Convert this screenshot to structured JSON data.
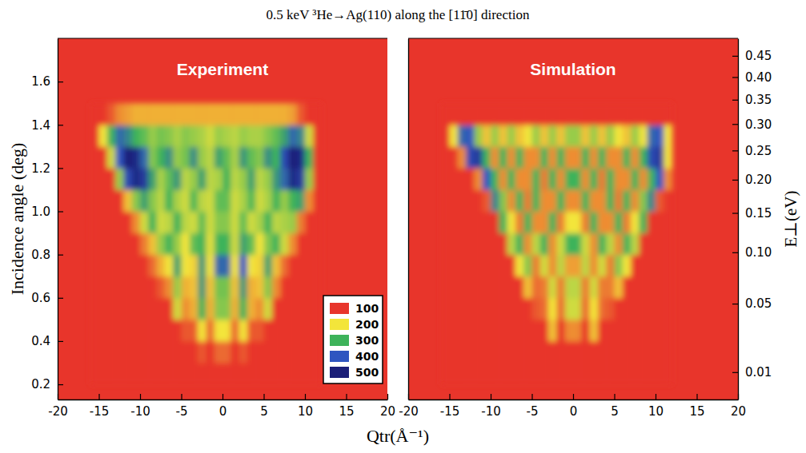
{
  "title": "0.5 keV ³He→Ag(110) along the [11̄0] direction",
  "xlabel": "Qtr(Å⁻¹)",
  "chart_data": [
    {
      "type": "heatmap",
      "title": "Experiment",
      "ylabel": "Incidence angle (deg)",
      "xlim": [
        -20,
        20
      ],
      "xticks": [
        -20,
        -15,
        -10,
        -5,
        0,
        5,
        10,
        15,
        20
      ],
      "ylim": [
        0.13,
        1.8
      ],
      "yticks": [
        0.2,
        0.4,
        0.6,
        0.8,
        {
          "value": 1,
          "label": "1.0"
        },
        1.2,
        1.4,
        1.6
      ],
      "legend": "lower right",
      "colorbar": {
        "range": [
          100,
          500
        ],
        "ticks": [
          100,
          200,
          300,
          400,
          500
        ]
      },
      "xbins": [
        -16,
        -15,
        -14,
        -13,
        -12,
        -11,
        -10,
        -9,
        -8,
        -7,
        -6,
        -5,
        -4,
        -3,
        -2,
        -1,
        0,
        1,
        2,
        3,
        4,
        5,
        6,
        7,
        8,
        9,
        10,
        11,
        12
      ],
      "ybins": [
        0.2,
        0.3,
        0.4,
        0.5,
        0.6,
        0.7,
        0.8,
        0.9,
        1.0,
        1.1,
        1.2,
        1.3,
        1.4,
        1.5
      ],
      "values": [
        [
          0,
          0,
          0,
          0,
          0,
          0,
          0,
          0,
          0,
          0,
          0,
          0,
          0,
          0,
          0,
          0,
          0,
          0,
          0,
          0,
          0,
          0,
          0,
          0,
          0,
          0,
          0,
          0
        ],
        [
          0,
          0,
          0,
          0,
          0,
          0,
          0,
          0,
          0,
          0,
          0,
          0,
          0,
          120,
          50,
          130,
          130,
          50,
          120,
          0,
          0,
          0,
          0,
          0,
          0,
          0,
          0,
          0
        ],
        [
          0,
          0,
          0,
          0,
          0,
          0,
          0,
          0,
          0,
          40,
          100,
          120,
          120,
          200,
          130,
          200,
          200,
          130,
          200,
          120,
          120,
          100,
          40,
          0,
          0,
          0,
          0,
          0
        ],
        [
          0,
          0,
          0,
          0,
          0,
          0,
          0,
          0,
          30,
          60,
          220,
          150,
          170,
          300,
          170,
          260,
          260,
          170,
          300,
          170,
          150,
          220,
          60,
          30,
          0,
          0,
          0,
          0
        ],
        [
          0,
          0,
          0,
          0,
          0,
          0,
          0,
          50,
          120,
          150,
          250,
          170,
          180,
          330,
          180,
          270,
          270,
          180,
          330,
          170,
          180,
          260,
          150,
          50,
          0,
          0,
          0,
          0
        ],
        [
          0,
          0,
          0,
          0,
          0,
          0,
          60,
          130,
          170,
          200,
          320,
          200,
          190,
          330,
          200,
          380,
          380,
          200,
          400,
          200,
          190,
          320,
          180,
          130,
          40,
          0,
          0,
          0
        ],
        [
          0,
          0,
          0,
          0,
          0,
          60,
          140,
          180,
          250,
          300,
          250,
          200,
          280,
          300,
          210,
          300,
          300,
          220,
          320,
          280,
          200,
          260,
          300,
          220,
          150,
          50,
          0,
          0
        ],
        [
          0,
          0,
          0,
          0,
          60,
          150,
          220,
          300,
          220,
          230,
          300,
          230,
          220,
          280,
          220,
          260,
          260,
          220,
          280,
          220,
          240,
          300,
          230,
          240,
          250,
          140,
          40,
          0
        ],
        [
          0,
          0,
          0,
          60,
          180,
          260,
          320,
          260,
          230,
          300,
          240,
          220,
          290,
          230,
          220,
          280,
          280,
          220,
          240,
          290,
          220,
          240,
          300,
          250,
          300,
          320,
          150,
          30
        ],
        [
          0,
          0,
          80,
          250,
          420,
          480,
          450,
          320,
          240,
          280,
          330,
          230,
          250,
          320,
          230,
          240,
          300,
          230,
          250,
          320,
          230,
          250,
          330,
          380,
          480,
          450,
          250,
          60
        ],
        [
          0,
          80,
          220,
          400,
          500,
          480,
          380,
          260,
          300,
          340,
          250,
          270,
          340,
          250,
          230,
          320,
          280,
          240,
          330,
          280,
          260,
          340,
          300,
          420,
          500,
          480,
          300,
          80
        ],
        [
          60,
          200,
          300,
          380,
          350,
          300,
          280,
          250,
          270,
          260,
          240,
          260,
          250,
          240,
          220,
          250,
          240,
          230,
          250,
          240,
          240,
          260,
          280,
          320,
          380,
          350,
          220,
          60
        ],
        [
          0,
          60,
          120,
          150,
          160,
          170,
          170,
          170,
          170,
          170,
          170,
          170,
          170,
          170,
          170,
          170,
          170,
          170,
          170,
          170,
          170,
          170,
          170,
          170,
          160,
          120,
          60,
          0
        ]
      ]
    },
    {
      "type": "heatmap",
      "title": "Simulation",
      "y2label": "E⊥(eV)",
      "xlim": [
        -20,
        20
      ],
      "xticks": [
        -20,
        -15,
        -10,
        -5,
        0,
        5,
        10,
        15,
        20
      ],
      "ylim": [
        0.13,
        1.8
      ],
      "y2lim": [
        0.00257,
        0.4933
      ],
      "y2ticks": [
        0.01,
        0.05,
        {
          "value": 0.1,
          "label": "0.10"
        },
        0.15,
        {
          "value": 0.2,
          "label": "0.20"
        },
        0.25,
        {
          "value": 0.3,
          "label": "0.30"
        },
        0.35,
        {
          "value": 0.4,
          "label": "0.40"
        },
        0.45
      ],
      "xbins": [
        -16,
        -15,
        -14,
        -13,
        -12,
        -11,
        -10,
        -9,
        -8,
        -7,
        -6,
        -5,
        -4,
        -3,
        -2,
        -1,
        0,
        1,
        2,
        3,
        4,
        5,
        6,
        7,
        8,
        9,
        10,
        11,
        12
      ],
      "ybins": [
        0.2,
        0.3,
        0.4,
        0.5,
        0.6,
        0.7,
        0.8,
        0.9,
        1.0,
        1.1,
        1.2,
        1.3,
        1.4,
        1.5
      ],
      "values": [
        [
          0,
          0,
          0,
          0,
          0,
          0,
          0,
          0,
          0,
          0,
          0,
          0,
          0,
          0,
          0,
          60,
          60,
          0,
          0,
          0,
          0,
          0,
          0,
          0,
          0,
          0,
          0,
          0
        ],
        [
          0,
          0,
          0,
          0,
          0,
          0,
          0,
          0,
          0,
          0,
          0,
          0,
          0,
          80,
          0,
          100,
          100,
          0,
          80,
          0,
          0,
          0,
          0,
          0,
          0,
          0,
          0,
          0
        ],
        [
          0,
          0,
          0,
          0,
          0,
          0,
          0,
          0,
          0,
          0,
          0,
          0,
          60,
          180,
          100,
          150,
          150,
          100,
          180,
          60,
          0,
          0,
          0,
          0,
          0,
          0,
          0,
          0
        ],
        [
          0,
          0,
          0,
          0,
          0,
          0,
          0,
          0,
          0,
          0,
          80,
          120,
          130,
          200,
          130,
          220,
          220,
          130,
          200,
          130,
          120,
          80,
          0,
          0,
          0,
          0,
          0,
          0
        ],
        [
          0,
          0,
          0,
          0,
          0,
          0,
          0,
          0,
          0,
          80,
          180,
          130,
          140,
          220,
          140,
          230,
          230,
          140,
          220,
          140,
          140,
          180,
          80,
          0,
          0,
          0,
          0,
          0
        ],
        [
          0,
          0,
          0,
          0,
          0,
          0,
          0,
          0,
          80,
          200,
          260,
          140,
          220,
          150,
          230,
          160,
          160,
          230,
          150,
          220,
          140,
          260,
          200,
          80,
          0,
          0,
          0,
          0
        ],
        [
          0,
          0,
          0,
          0,
          0,
          0,
          0,
          80,
          230,
          300,
          150,
          230,
          300,
          150,
          220,
          300,
          300,
          220,
          150,
          300,
          230,
          150,
          300,
          230,
          80,
          0,
          0,
          0
        ],
        [
          0,
          0,
          0,
          0,
          0,
          0,
          100,
          300,
          200,
          140,
          300,
          150,
          150,
          300,
          140,
          200,
          200,
          140,
          300,
          150,
          150,
          300,
          140,
          200,
          300,
          100,
          0,
          0
        ],
        [
          0,
          0,
          0,
          0,
          0,
          120,
          350,
          260,
          150,
          300,
          140,
          300,
          150,
          150,
          300,
          150,
          150,
          300,
          150,
          150,
          300,
          140,
          300,
          150,
          260,
          350,
          120,
          0
        ],
        [
          0,
          0,
          0,
          0,
          150,
          400,
          300,
          150,
          300,
          150,
          150,
          300,
          140,
          300,
          150,
          300,
          300,
          150,
          300,
          140,
          300,
          150,
          150,
          300,
          150,
          300,
          400,
          150
        ],
        [
          0,
          40,
          150,
          420,
          450,
          300,
          150,
          300,
          150,
          300,
          150,
          150,
          300,
          150,
          300,
          150,
          150,
          300,
          150,
          300,
          150,
          150,
          300,
          150,
          300,
          420,
          450,
          200
        ],
        [
          60,
          200,
          380,
          400,
          250,
          180,
          250,
          180,
          250,
          180,
          200,
          250,
          180,
          250,
          180,
          250,
          250,
          180,
          250,
          180,
          250,
          200,
          180,
          250,
          200,
          380,
          400,
          200
        ],
        [
          0,
          0,
          0,
          0,
          0,
          0,
          0,
          0,
          0,
          0,
          0,
          0,
          0,
          0,
          0,
          0,
          0,
          0,
          0,
          0,
          0,
          0,
          0,
          0,
          0,
          0,
          0,
          0
        ]
      ]
    }
  ]
}
